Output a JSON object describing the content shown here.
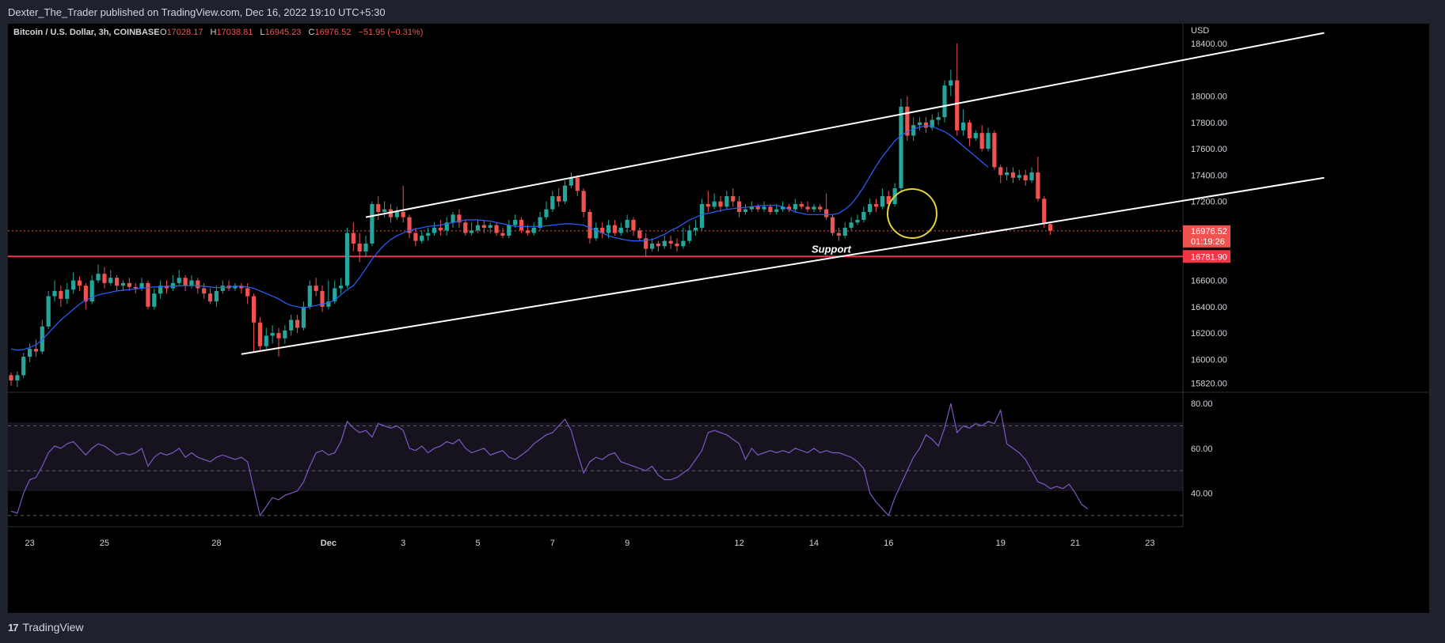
{
  "header": {
    "publisher_line": "Dexter_The_Trader published on TradingView.com, Dec 16, 2022 19:10 UTC+5:30"
  },
  "footer": {
    "brand": "TradingView",
    "logo_glyph": "17"
  },
  "legend": {
    "symbol": "Bitcoin / U.S. Dollar, 3h, COINBASE",
    "o_label": "O",
    "o_value": "17028.17",
    "h_label": "H",
    "h_value": "17038.81",
    "l_label": "L",
    "l_value": "16945.23",
    "c_label": "C",
    "c_value": "16976.52",
    "change": "−51.95 (−0.31%)"
  },
  "price_axis": {
    "currency": "USD",
    "ticks": [
      "18400.00",
      "18000.00",
      "17800.00",
      "17600.00",
      "17400.00",
      "17200.00",
      "16600.00",
      "16400.00",
      "16200.00",
      "16000.00",
      "15820.00"
    ],
    "last_price": "16976.52",
    "countdown": "01:19:26",
    "support_price": "16781.90"
  },
  "rsi_axis": {
    "ticks": [
      "80.00",
      "60.00",
      "40.00"
    ]
  },
  "time_axis": {
    "labels": [
      "23",
      "25",
      "28",
      "Dec",
      "3",
      "5",
      "7",
      "9",
      "12",
      "14",
      "16",
      "19",
      "21",
      "23"
    ]
  },
  "annotations": {
    "support_label": "Support"
  },
  "colors": {
    "up": "#26a69a",
    "down": "#ef5350",
    "ma": "#2962ff",
    "rsi": "#7e57c2",
    "support": "#f23645",
    "circle": "#e6d33a",
    "channel": "#ffffff"
  },
  "chart_data": {
    "type": "candlestick",
    "symbol": "BTCUSD",
    "interval": "3h",
    "ylim": [
      15750,
      18550
    ],
    "last": {
      "open": 17028.17,
      "high": 17038.81,
      "low": 16945.23,
      "close": 16976.52,
      "change": -51.95,
      "change_pct": -0.31
    },
    "support_level": 16781.9,
    "x_labels": [
      "23",
      "25",
      "28",
      "Dec",
      "3",
      "5",
      "7",
      "9",
      "12",
      "14",
      "16",
      "19",
      "21",
      "23"
    ],
    "candles": [
      [
        15880,
        15840,
        15900,
        15800
      ],
      [
        15840,
        15880,
        15910,
        15790
      ],
      [
        15880,
        16020,
        16050,
        15860
      ],
      [
        16020,
        16080,
        16120,
        15980
      ],
      [
        16080,
        16060,
        16150,
        16020
      ],
      [
        16060,
        16250,
        16300,
        16040
      ],
      [
        16250,
        16480,
        16520,
        16230
      ],
      [
        16480,
        16520,
        16600,
        16440
      ],
      [
        16520,
        16460,
        16560,
        16400
      ],
      [
        16460,
        16530,
        16580,
        16420
      ],
      [
        16530,
        16600,
        16660,
        16500
      ],
      [
        16600,
        16560,
        16630,
        16520
      ],
      [
        16560,
        16440,
        16580,
        16380
      ],
      [
        16440,
        16600,
        16640,
        16420
      ],
      [
        16600,
        16650,
        16720,
        16580
      ],
      [
        16650,
        16580,
        16700,
        16540
      ],
      [
        16580,
        16620,
        16680,
        16560
      ],
      [
        16620,
        16560,
        16640,
        16520
      ],
      [
        16560,
        16580,
        16600,
        16520
      ],
      [
        16580,
        16550,
        16620,
        16520
      ],
      [
        16550,
        16540,
        16580,
        16500
      ],
      [
        16540,
        16580,
        16620,
        16520
      ],
      [
        16580,
        16400,
        16600,
        16380
      ],
      [
        16400,
        16500,
        16540,
        16380
      ],
      [
        16500,
        16560,
        16600,
        16460
      ],
      [
        16560,
        16540,
        16600,
        16500
      ],
      [
        16540,
        16580,
        16640,
        16520
      ],
      [
        16580,
        16620,
        16680,
        16560
      ],
      [
        16620,
        16560,
        16640,
        16520
      ],
      [
        16560,
        16600,
        16640,
        16540
      ],
      [
        16600,
        16540,
        16620,
        16500
      ],
      [
        16540,
        16500,
        16580,
        16460
      ],
      [
        16500,
        16440,
        16540,
        16420
      ],
      [
        16440,
        16520,
        16560,
        16400
      ],
      [
        16520,
        16560,
        16600,
        16500
      ],
      [
        16560,
        16540,
        16600,
        16520
      ],
      [
        16540,
        16560,
        16580,
        16520
      ],
      [
        16560,
        16540,
        16580,
        16500
      ],
      [
        16540,
        16480,
        16580,
        16420
      ],
      [
        16480,
        16280,
        16500,
        16060
      ],
      [
        16280,
        16100,
        16320,
        16060
      ],
      [
        16100,
        16180,
        16240,
        16080
      ],
      [
        16180,
        16200,
        16260,
        16120
      ],
      [
        16200,
        16160,
        16240,
        16020
      ],
      [
        16160,
        16220,
        16260,
        16120
      ],
      [
        16220,
        16300,
        16340,
        16180
      ],
      [
        16300,
        16240,
        16340,
        16200
      ],
      [
        16240,
        16400,
        16440,
        16220
      ],
      [
        16400,
        16560,
        16600,
        16380
      ],
      [
        16560,
        16520,
        16620,
        16480
      ],
      [
        16520,
        16400,
        16560,
        16360
      ],
      [
        16400,
        16440,
        16600,
        16380
      ],
      [
        16440,
        16540,
        16600,
        16420
      ],
      [
        16540,
        16560,
        16620,
        16500
      ],
      [
        16560,
        16960,
        17000,
        16540
      ],
      [
        16960,
        16880,
        17040,
        16820
      ],
      [
        16880,
        16820,
        16960,
        16740
      ],
      [
        16820,
        16880,
        16940,
        16780
      ],
      [
        16880,
        17180,
        17200,
        16860
      ],
      [
        17180,
        17120,
        17240,
        17060
      ],
      [
        17120,
        17140,
        17200,
        17080
      ],
      [
        17140,
        17080,
        17180,
        17040
      ],
      [
        17080,
        17120,
        17160,
        17060
      ],
      [
        17120,
        17080,
        17320,
        17040
      ],
      [
        17080,
        16960,
        17100,
        16920
      ],
      [
        16960,
        16900,
        17000,
        16860
      ],
      [
        16900,
        16940,
        16980,
        16880
      ],
      [
        16940,
        16960,
        17000,
        16900
      ],
      [
        16960,
        17000,
        17040,
        16940
      ],
      [
        17000,
        16980,
        17060,
        16940
      ],
      [
        16980,
        17040,
        17080,
        16940
      ],
      [
        17040,
        17100,
        17120,
        17000
      ],
      [
        17100,
        17040,
        17140,
        17000
      ],
      [
        17040,
        16960,
        17060,
        16940
      ],
      [
        16960,
        16980,
        17040,
        16940
      ],
      [
        16980,
        17020,
        17060,
        16960
      ],
      [
        17020,
        17000,
        17060,
        16960
      ],
      [
        17000,
        17020,
        17040,
        16960
      ],
      [
        17020,
        16960,
        17040,
        16940
      ],
      [
        16960,
        16940,
        17000,
        16920
      ],
      [
        16940,
        17020,
        17060,
        16920
      ],
      [
        17020,
        17060,
        17100,
        17000
      ],
      [
        17060,
        16980,
        17080,
        16960
      ],
      [
        16980,
        16960,
        17020,
        16940
      ],
      [
        16960,
        17000,
        17040,
        16940
      ],
      [
        17000,
        17080,
        17120,
        16980
      ],
      [
        17080,
        17140,
        17200,
        17060
      ],
      [
        17140,
        17240,
        17280,
        17120
      ],
      [
        17240,
        17200,
        17300,
        17160
      ],
      [
        17200,
        17320,
        17360,
        17180
      ],
      [
        17320,
        17380,
        17420,
        17300
      ],
      [
        17380,
        17280,
        17400,
        17240
      ],
      [
        17280,
        17120,
        17300,
        17080
      ],
      [
        17120,
        16920,
        17140,
        16880
      ],
      [
        16920,
        17000,
        17040,
        16900
      ],
      [
        17000,
        16960,
        17040,
        16920
      ],
      [
        16960,
        17020,
        17060,
        16920
      ],
      [
        17020,
        16960,
        17060,
        16940
      ],
      [
        16960,
        17000,
        17040,
        16940
      ],
      [
        17000,
        17060,
        17100,
        16960
      ],
      [
        17060,
        16980,
        17080,
        16940
      ],
      [
        16980,
        16920,
        17000,
        16900
      ],
      [
        16920,
        16840,
        16960,
        16780
      ],
      [
        16840,
        16880,
        16920,
        16820
      ],
      [
        16880,
        16860,
        16900,
        16820
      ],
      [
        16860,
        16900,
        16940,
        16840
      ],
      [
        16900,
        16880,
        16940,
        16840
      ],
      [
        16880,
        16860,
        16920,
        16820
      ],
      [
        16860,
        16900,
        17000,
        16840
      ],
      [
        16900,
        16980,
        17020,
        16880
      ],
      [
        16980,
        17000,
        17060,
        16940
      ],
      [
        17000,
        17180,
        17220,
        16980
      ],
      [
        17180,
        17160,
        17280,
        17120
      ],
      [
        17160,
        17200,
        17260,
        17140
      ],
      [
        17200,
        17160,
        17240,
        17120
      ],
      [
        17160,
        17240,
        17280,
        17140
      ],
      [
        17240,
        17200,
        17300,
        17160
      ],
      [
        17200,
        17120,
        17240,
        17080
      ],
      [
        17120,
        17140,
        17180,
        17100
      ],
      [
        17140,
        17160,
        17200,
        17120
      ],
      [
        17160,
        17140,
        17180,
        17120
      ],
      [
        17140,
        17160,
        17200,
        17120
      ],
      [
        17160,
        17120,
        17180,
        17100
      ],
      [
        17120,
        17140,
        17180,
        17100
      ],
      [
        17140,
        17160,
        17200,
        17120
      ],
      [
        17160,
        17140,
        17180,
        17120
      ],
      [
        17140,
        17180,
        17220,
        17120
      ],
      [
        17180,
        17160,
        17200,
        17140
      ],
      [
        17160,
        17140,
        17200,
        17120
      ],
      [
        17140,
        17160,
        17180,
        17120
      ],
      [
        17160,
        17140,
        17180,
        17120
      ],
      [
        17140,
        17080,
        17260,
        17060
      ],
      [
        17080,
        16960,
        17100,
        16940
      ],
      [
        16960,
        16940,
        17000,
        16900
      ],
      [
        16940,
        17000,
        17040,
        16920
      ],
      [
        17000,
        17040,
        17080,
        16980
      ],
      [
        17040,
        17060,
        17100,
        17020
      ],
      [
        17060,
        17120,
        17160,
        17040
      ],
      [
        17120,
        17180,
        17220,
        17100
      ],
      [
        17180,
        17160,
        17220,
        17120
      ],
      [
        17160,
        17240,
        17300,
        17140
      ],
      [
        17240,
        17180,
        17280,
        17140
      ],
      [
        17180,
        17300,
        17340,
        17160
      ],
      [
        17300,
        17920,
        17980,
        17280
      ],
      [
        17920,
        17700,
        18000,
        17660
      ],
      [
        17700,
        17780,
        17840,
        17660
      ],
      [
        17780,
        17800,
        17840,
        17740
      ],
      [
        17800,
        17760,
        17840,
        17720
      ],
      [
        17760,
        17820,
        17860,
        17740
      ],
      [
        17820,
        17840,
        17880,
        17780
      ],
      [
        17840,
        18080,
        18120,
        17800
      ],
      [
        18080,
        18120,
        18200,
        18000
      ],
      [
        18120,
        17740,
        18400,
        17700
      ],
      [
        17740,
        17800,
        17900,
        17700
      ],
      [
        17800,
        17680,
        17820,
        17620
      ],
      [
        17680,
        17720,
        17740,
        17660
      ],
      [
        17720,
        17600,
        17780,
        17580
      ],
      [
        17600,
        17720,
        17760,
        17580
      ],
      [
        17720,
        17460,
        17740,
        17440
      ],
      [
        17460,
        17400,
        17480,
        17340
      ],
      [
        17400,
        17420,
        17460,
        17360
      ],
      [
        17420,
        17380,
        17460,
        17340
      ],
      [
        17380,
        17400,
        17440,
        17360
      ],
      [
        17400,
        17360,
        17440,
        17320
      ],
      [
        17360,
        17420,
        17460,
        17340
      ],
      [
        17420,
        17220,
        17540,
        17200
      ],
      [
        17220,
        17028,
        17240,
        17000
      ],
      [
        17028,
        16976.52,
        17038.81,
        16945.23
      ]
    ],
    "ma_line": [
      16080,
      16070,
      16075,
      16090,
      16110,
      16150,
      16200,
      16250,
      16300,
      16340,
      16380,
      16420,
      16450,
      16470,
      16490,
      16500,
      16510,
      16520,
      16525,
      16530,
      16535,
      16540,
      16545,
      16550,
      16552,
      16555,
      16556,
      16558,
      16560,
      16560,
      16560,
      16555,
      16550,
      16545,
      16545,
      16550,
      16555,
      16555,
      16550,
      16540,
      16520,
      16500,
      16480,
      16460,
      16430,
      16410,
      16400,
      16390,
      16400,
      16410,
      16420,
      16430,
      16450,
      16490,
      16530,
      16560,
      16620,
      16690,
      16760,
      16820,
      16870,
      16910,
      16940,
      16960,
      16980,
      16990,
      17000,
      17010,
      17015,
      17020,
      17030,
      17040,
      17050,
      17060,
      17060,
      17060,
      17055,
      17050,
      17040,
      17030,
      17020,
      17010,
      17010,
      17010,
      17010,
      17010,
      17015,
      17020,
      17025,
      17030,
      17030,
      17025,
      17020,
      17000,
      16980,
      16960,
      16940,
      16925,
      16915,
      16905,
      16900,
      16900,
      16905,
      16910,
      16930,
      16950,
      16980,
      17000,
      17030,
      17060,
      17080,
      17100,
      17110,
      17120,
      17130,
      17140,
      17145,
      17150,
      17155,
      17160,
      17165,
      17170,
      17170,
      17170,
      17160,
      17140,
      17120,
      17110,
      17100,
      17100,
      17100,
      17100,
      17100,
      17110,
      17140,
      17180,
      17240,
      17310,
      17390,
      17470,
      17540,
      17600,
      17660,
      17700,
      17730,
      17750,
      17765,
      17775,
      17770,
      17750,
      17730,
      17700,
      17660,
      17620,
      17580,
      17540,
      17500,
      17460
    ],
    "rsi": {
      "ylim": [
        25,
        85
      ],
      "levels": [
        70,
        50,
        30
      ],
      "values": [
        32,
        31,
        40,
        46,
        47,
        52,
        58,
        61,
        60,
        62,
        63,
        60,
        57,
        60,
        62,
        61,
        59,
        57,
        58,
        57,
        58,
        60,
        52,
        56,
        58,
        57,
        58,
        60,
        56,
        58,
        56,
        55,
        54,
        56,
        57,
        56,
        55,
        56,
        54,
        42,
        30,
        34,
        38,
        37,
        39,
        40,
        41,
        45,
        52,
        58,
        59,
        57,
        58,
        63,
        72,
        69,
        67,
        68,
        65,
        71,
        70,
        69,
        70,
        68,
        60,
        59,
        61,
        58,
        60,
        61,
        63,
        62,
        64,
        60,
        58,
        59,
        60,
        57,
        58,
        59,
        56,
        55,
        57,
        59,
        62,
        64,
        66,
        67,
        70,
        73,
        68,
        58,
        49,
        54,
        56,
        55,
        57,
        58,
        54,
        53,
        52,
        51,
        50,
        52,
        48,
        46,
        46,
        47,
        49,
        51,
        55,
        59,
        67,
        68,
        67,
        66,
        64,
        62,
        55,
        60,
        57,
        58,
        59,
        58,
        59,
        58,
        60,
        59,
        58,
        60,
        58,
        59,
        58,
        58,
        57,
        56,
        54,
        51,
        40,
        36,
        33,
        30,
        38,
        44,
        50,
        56,
        60,
        66,
        64,
        61,
        69,
        80,
        67,
        70,
        69,
        71,
        70,
        72,
        71,
        77,
        62,
        60,
        58,
        55,
        50,
        45,
        44,
        42,
        43,
        42,
        44,
        40,
        35,
        33
      ]
    },
    "channel_upper": {
      "x0": 57,
      "y0": 17080,
      "x1": 211,
      "y1": 18480
    },
    "channel_lower": {
      "x0": 37,
      "y0": 16040,
      "x1": 211,
      "y1": 17380
    }
  }
}
